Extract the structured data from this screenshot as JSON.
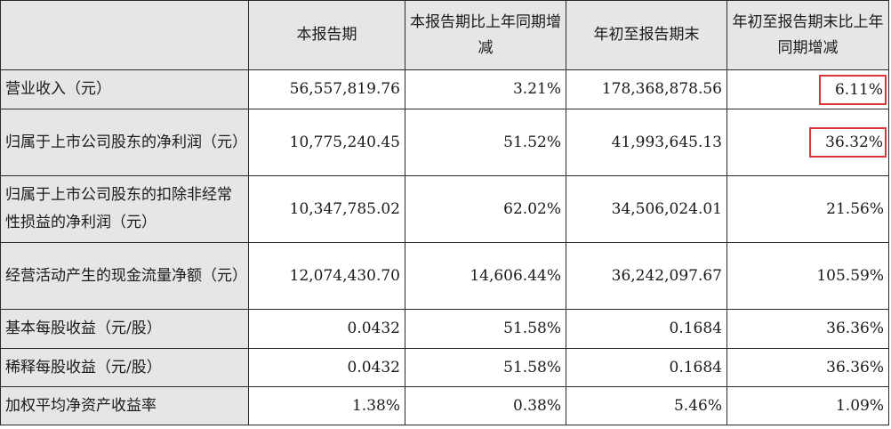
{
  "table": {
    "headers": [
      "",
      "本报告期",
      "本报告期比上年同期增减",
      "年初至报告期末",
      "年初至报告期末比上年同期增减"
    ],
    "rows": [
      {
        "label": "营业收入（元）",
        "current": "56,557,819.76",
        "current_change": "3.21%",
        "ytd": "178,368,878.56",
        "ytd_change": "6.11%",
        "highlighted": true
      },
      {
        "label": "归属于上市公司股东的净利润（元）",
        "current": "10,775,240.45",
        "current_change": "51.52%",
        "ytd": "41,993,645.13",
        "ytd_change": "36.32%",
        "highlighted": true
      },
      {
        "label": "归属于上市公司股东的扣除非经常性损益的净利润（元）",
        "current": "10,347,785.02",
        "current_change": "62.02%",
        "ytd": "34,506,024.01",
        "ytd_change": "21.56%",
        "highlighted": false
      },
      {
        "label": "经营活动产生的现金流量净额（元）",
        "current": "12,074,430.70",
        "current_change": "14,606.44%",
        "ytd": "36,242,097.67",
        "ytd_change": "105.59%",
        "highlighted": false
      },
      {
        "label": "基本每股收益（元/股）",
        "current": "0.0432",
        "current_change": "51.58%",
        "ytd": "0.1684",
        "ytd_change": "36.36%",
        "highlighted": false
      },
      {
        "label": "稀释每股收益（元/股）",
        "current": "0.0432",
        "current_change": "51.58%",
        "ytd": "0.1684",
        "ytd_change": "36.36%",
        "highlighted": false
      },
      {
        "label": "加权平均净资产收益率",
        "current": "1.38%",
        "current_change": "0.38%",
        "ytd": "5.46%",
        "ytd_change": "1.09%",
        "highlighted": false
      }
    ]
  },
  "colors": {
    "header_background": "#e6e6e6",
    "border": "#2a2a2a",
    "highlight": "#d9373b"
  }
}
